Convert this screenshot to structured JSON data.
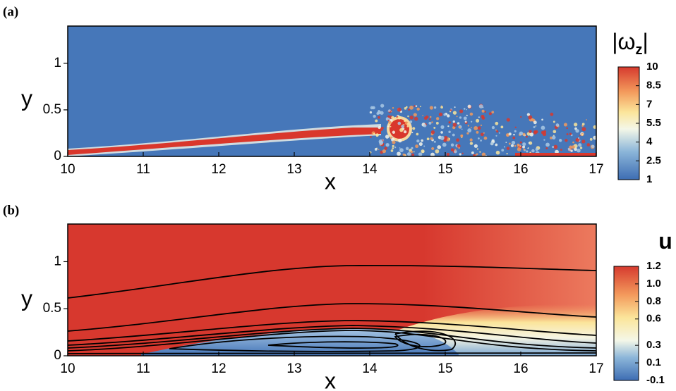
{
  "chart_data": [
    {
      "type": "contour",
      "panel_label": "(a)",
      "x_label": "x",
      "y_label": "y",
      "xlim": [
        10,
        17
      ],
      "ylim": [
        0,
        1.4
      ],
      "xticks": [
        10,
        11,
        12,
        13,
        14,
        15,
        16,
        17
      ],
      "yticks": [
        0,
        0.5,
        1
      ],
      "colorbar": {
        "title_parts": [
          "|ω",
          "z",
          "|"
        ],
        "lim": [
          1,
          10
        ],
        "ticks": [
          1,
          2.5,
          4,
          5.5,
          7,
          8.5,
          10
        ]
      }
    },
    {
      "type": "contour",
      "panel_label": "(b)",
      "x_label": "x",
      "y_label": "y",
      "xlim": [
        10,
        17
      ],
      "ylim": [
        0,
        1.4
      ],
      "xticks": [
        10,
        11,
        12,
        13,
        14,
        15,
        16,
        17
      ],
      "yticks": [
        0,
        0.5,
        1
      ],
      "colorbar": {
        "title_parts": [
          "u"
        ],
        "lim": [
          -0.1,
          1.2
        ],
        "ticks": [
          -0.1,
          0.1,
          0.3,
          0.6,
          0.8,
          {
            "value": 1,
            "label": "1.0"
          },
          1.2
        ]
      }
    }
  ]
}
